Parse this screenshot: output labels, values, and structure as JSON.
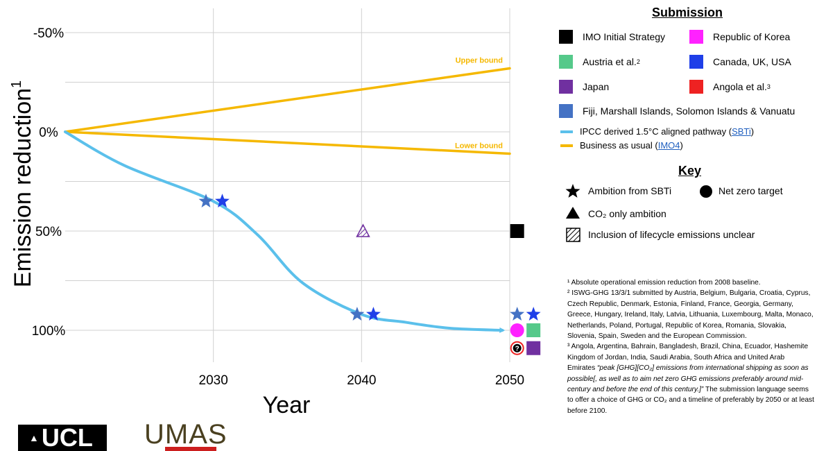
{
  "chart_data": {
    "type": "line",
    "xlabel": "Year",
    "ylabel": "Emission reduction",
    "ylabel_superscript": "1",
    "xlim": [
      2020,
      2050
    ],
    "ylim": [
      -50,
      100
    ],
    "x_ticks": [
      2030,
      2040,
      2050
    ],
    "x_tick_labels": [
      "2030",
      "2040",
      "2050"
    ],
    "y_ticks": [
      -50,
      0,
      50,
      100
    ],
    "y_tick_labels": [
      "-50%",
      "0%",
      "50%",
      "100%"
    ],
    "y_inverted": true,
    "grid": true,
    "series": [
      {
        "name": "Upper bound",
        "color": "#f5b800",
        "x": [
          2020,
          2050
        ],
        "y": [
          0,
          -32
        ]
      },
      {
        "name": "Lower bound",
        "color": "#f5b800",
        "x": [
          2020,
          2050
        ],
        "y": [
          0,
          11
        ]
      },
      {
        "name": "IPCC derived 1.5°C aligned pathway",
        "color": "#5bc0eb",
        "x": [
          2020,
          2024,
          2030,
          2033,
          2036,
          2040,
          2043,
          2046,
          2049.5
        ],
        "y": [
          0,
          17,
          35,
          52,
          76,
          92,
          96,
          99,
          100
        ]
      }
    ],
    "markers": [
      {
        "submission": "Fiji, Marshall Islands, Solomon Islands & Vanuatu",
        "shape": "star",
        "x": 2029.5,
        "y": 35,
        "color": "#4472c4"
      },
      {
        "submission": "Canada, UK, USA",
        "shape": "star",
        "x": 2030.6,
        "y": 35,
        "color": "#1f3fe8"
      },
      {
        "submission": "Fiji, Marshall Islands, Solomon Islands & Vanuatu",
        "shape": "star",
        "x": 2039.7,
        "y": 92,
        "color": "#4472c4"
      },
      {
        "submission": "Canada, UK, USA",
        "shape": "star",
        "x": 2040.8,
        "y": 92,
        "color": "#1f3fe8"
      },
      {
        "submission": "Japan",
        "shape": "triangle-hatched",
        "x": 2040.1,
        "y": 50,
        "color": "#7030a0"
      },
      {
        "submission": "IMO Initial Strategy",
        "shape": "square",
        "x": 2050.5,
        "y": 50,
        "color": "#000000"
      },
      {
        "submission": "Fiji, Marshall Islands, Solomon Islands & Vanuatu",
        "shape": "star",
        "x": 2050.5,
        "y": 92,
        "color": "#4472c4"
      },
      {
        "submission": "Canada, UK, USA",
        "shape": "star",
        "x": 2051.6,
        "y": 92,
        "color": "#1f3fe8"
      },
      {
        "submission": "Republic of Korea",
        "shape": "circle",
        "x": 2050.5,
        "y": 100,
        "color": "#ff22ff"
      },
      {
        "submission": "Austria et al.",
        "shape": "square",
        "x": 2051.6,
        "y": 100,
        "color": "#55c98a"
      },
      {
        "submission": "Angola et al.",
        "shape": "circle-question",
        "x": 2050.5,
        "y": 109,
        "color": "#ee2222"
      },
      {
        "submission": "Japan",
        "shape": "square",
        "x": 2051.6,
        "y": 109,
        "color": "#7030a0"
      }
    ],
    "annotations": [
      "Upper bound",
      "Lower bound"
    ]
  },
  "legend": {
    "title": "Submission",
    "items": [
      {
        "label": "IMO Initial Strategy",
        "color": "#000000"
      },
      {
        "label": "Republic of Korea",
        "color": "#ff22ff"
      },
      {
        "label": "Austria et al.",
        "sup": "2",
        "color": "#55c98a"
      },
      {
        "label": "Canada, UK, USA",
        "color": "#1f3fe8"
      },
      {
        "label": "Japan",
        "color": "#7030a0"
      },
      {
        "label": "Angola et al. ",
        "sup": "3",
        "color": "#ee2222"
      },
      {
        "label": "Fiji, Marshall Islands, Solomon Islands & Vanuatu",
        "color": "#4472c4"
      }
    ],
    "lines": [
      {
        "label": "IPCC derived 1.5°C aligned pathway (",
        "link": "SBTi",
        "end": ")",
        "color": "#5bc0eb"
      },
      {
        "label": "Business as usual (",
        "link": "IMO4",
        "end": ")",
        "color": "#f5b800"
      }
    ]
  },
  "key": {
    "title": "Key",
    "star": "Ambition from SBTi",
    "circle": "Net zero target",
    "triangle": "CO₂ only ambition",
    "hatched": "Inclusion of lifecycle emissions unclear"
  },
  "footnotes": {
    "n1": "¹ Absolute operational emission reduction from 2008 baseline.",
    "n2": "² ISWG-GHG 13/3/1 submitted by Austria, Belgium, Bulgaria, Croatia, Cyprus, Czech Republic, Denmark, Estonia, Finland, France, Georgia, Germany, Greece, Hungary, Ireland, Italy, Latvia, Lithuania, Luxembourg, Malta, Monaco, Netherlands, Poland, Portugal, Republic of Korea, Romania, Slovakia, Slovenia, Spain, Sweden and the European Commission.",
    "n3_plain": "³ Angola, Argentina, Bahrain, Bangladesh, Brazil, China, Ecuador, Hashemite Kingdom of Jordan, India, Saudi Arabia, South Africa and United Arab Emirates ",
    "n3_quote": "“peak [GHG][CO₂] emissions from international shipping as soon as possible[, as well as to aim net zero GHG emissions preferably around mid-century and before the end of this century.]”",
    "n3_tail": " The submission language seems to offer a choice of GHG or CO₂ and a timeline of preferably by 2050 or at least before 2100."
  },
  "logos": {
    "ucl": "UCL",
    "umas": "UMAS"
  }
}
